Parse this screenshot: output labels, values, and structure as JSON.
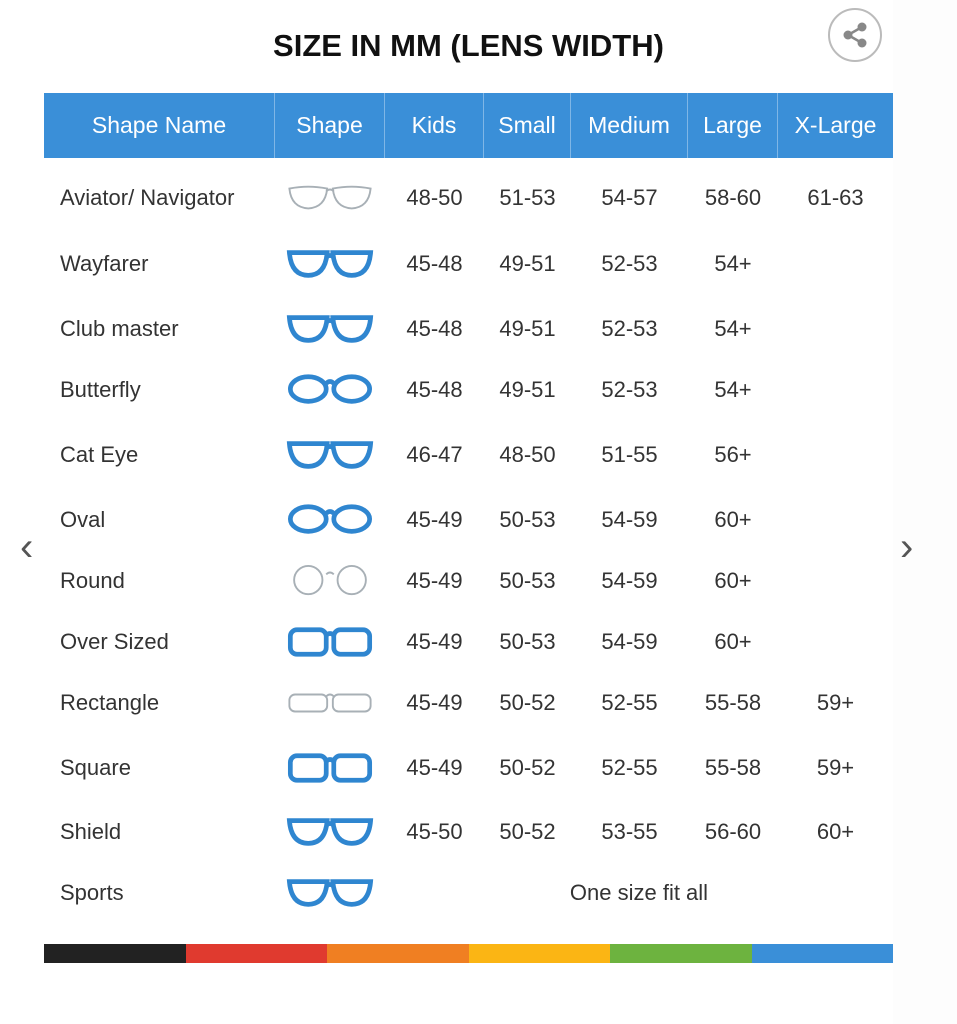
{
  "title": "SIZE IN MM (LENS WIDTH)",
  "share_icon": "share-icon",
  "columns": [
    "Shape Name",
    "Shape",
    "Kids",
    "Small",
    "Medium",
    "Large",
    "X-Large"
  ],
  "rows": [
    {
      "name": "Aviator/ Navigator",
      "shape": "aviator",
      "kids": "48-50",
      "small": "51-53",
      "medium": "54-57",
      "large": "58-60",
      "xlarge": "61-63"
    },
    {
      "name": "Wayfarer",
      "shape": "wayfarer",
      "kids": "45-48",
      "small": "49-51",
      "medium": "52-53",
      "large": "54+",
      "xlarge": ""
    },
    {
      "name": "Club master",
      "shape": "clubmaster",
      "kids": "45-48",
      "small": "49-51",
      "medium": "52-53",
      "large": "54+",
      "xlarge": ""
    },
    {
      "name": "Butterfly",
      "shape": "butterfly",
      "kids": "45-48",
      "small": "49-51",
      "medium": "52-53",
      "large": "54+",
      "xlarge": ""
    },
    {
      "name": "Cat Eye",
      "shape": "cateye",
      "kids": "46-47",
      "small": "48-50",
      "medium": "51-55",
      "large": "56+",
      "xlarge": ""
    },
    {
      "name": "Oval",
      "shape": "oval",
      "kids": "45-49",
      "small": "50-53",
      "medium": "54-59",
      "large": "60+",
      "xlarge": ""
    },
    {
      "name": "Round",
      "shape": "round",
      "kids": "45-49",
      "small": "50-53",
      "medium": "54-59",
      "large": "60+",
      "xlarge": ""
    },
    {
      "name": "Over Sized",
      "shape": "oversized",
      "kids": "45-49",
      "small": "50-53",
      "medium": "54-59",
      "large": "60+",
      "xlarge": ""
    },
    {
      "name": "Rectangle",
      "shape": "rectangle",
      "kids": "45-49",
      "small": "50-52",
      "medium": "52-55",
      "large": "55-58",
      "xlarge": "59+"
    },
    {
      "name": "Square",
      "shape": "square",
      "kids": "45-49",
      "small": "50-52",
      "medium": "52-55",
      "large": "55-58",
      "xlarge": "59+"
    },
    {
      "name": "Shield",
      "shape": "shield",
      "kids": "45-50",
      "small": "50-52",
      "medium": "53-55",
      "large": "56-60",
      "xlarge": "60+"
    },
    {
      "name": "Sports",
      "shape": "sports",
      "span_text": "One size fit all"
    }
  ],
  "colors": {
    "header": "#3a8fd8",
    "frame_blue": "#2f86d0",
    "frame_grey": "#a8b0b6",
    "bar": [
      "#222222",
      "#e03a2f",
      "#f07f22",
      "#fbb514",
      "#6db33f",
      "#3a8fd8"
    ]
  },
  "nav": {
    "prev": "‹",
    "next": "›"
  }
}
